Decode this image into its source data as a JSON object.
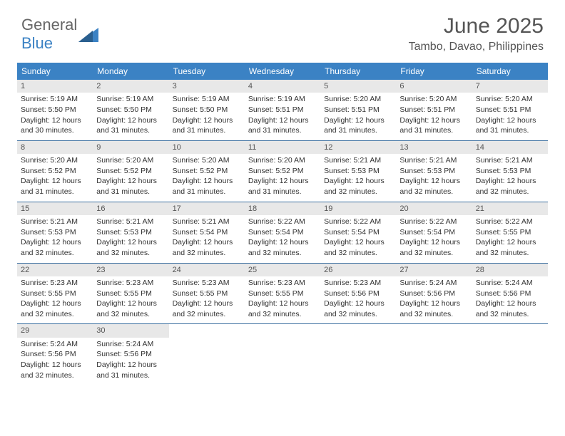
{
  "logo": {
    "word1": "General",
    "word2": "Blue"
  },
  "header": {
    "month": "June 2025",
    "location": "Tambo, Davao, Philippines"
  },
  "colors": {
    "header_bar": "#3b82c4",
    "daynum_bg": "#e8e8e8",
    "week_border": "#3b6fa0",
    "text": "#333333",
    "title": "#555555"
  },
  "daynames": [
    "Sunday",
    "Monday",
    "Tuesday",
    "Wednesday",
    "Thursday",
    "Friday",
    "Saturday"
  ],
  "days": [
    {
      "n": "1",
      "sr": "Sunrise: 5:19 AM",
      "ss": "Sunset: 5:50 PM",
      "d1": "Daylight: 12 hours",
      "d2": "and 30 minutes."
    },
    {
      "n": "2",
      "sr": "Sunrise: 5:19 AM",
      "ss": "Sunset: 5:50 PM",
      "d1": "Daylight: 12 hours",
      "d2": "and 31 minutes."
    },
    {
      "n": "3",
      "sr": "Sunrise: 5:19 AM",
      "ss": "Sunset: 5:50 PM",
      "d1": "Daylight: 12 hours",
      "d2": "and 31 minutes."
    },
    {
      "n": "4",
      "sr": "Sunrise: 5:19 AM",
      "ss": "Sunset: 5:51 PM",
      "d1": "Daylight: 12 hours",
      "d2": "and 31 minutes."
    },
    {
      "n": "5",
      "sr": "Sunrise: 5:20 AM",
      "ss": "Sunset: 5:51 PM",
      "d1": "Daylight: 12 hours",
      "d2": "and 31 minutes."
    },
    {
      "n": "6",
      "sr": "Sunrise: 5:20 AM",
      "ss": "Sunset: 5:51 PM",
      "d1": "Daylight: 12 hours",
      "d2": "and 31 minutes."
    },
    {
      "n": "7",
      "sr": "Sunrise: 5:20 AM",
      "ss": "Sunset: 5:51 PM",
      "d1": "Daylight: 12 hours",
      "d2": "and 31 minutes."
    },
    {
      "n": "8",
      "sr": "Sunrise: 5:20 AM",
      "ss": "Sunset: 5:52 PM",
      "d1": "Daylight: 12 hours",
      "d2": "and 31 minutes."
    },
    {
      "n": "9",
      "sr": "Sunrise: 5:20 AM",
      "ss": "Sunset: 5:52 PM",
      "d1": "Daylight: 12 hours",
      "d2": "and 31 minutes."
    },
    {
      "n": "10",
      "sr": "Sunrise: 5:20 AM",
      "ss": "Sunset: 5:52 PM",
      "d1": "Daylight: 12 hours",
      "d2": "and 31 minutes."
    },
    {
      "n": "11",
      "sr": "Sunrise: 5:20 AM",
      "ss": "Sunset: 5:52 PM",
      "d1": "Daylight: 12 hours",
      "d2": "and 31 minutes."
    },
    {
      "n": "12",
      "sr": "Sunrise: 5:21 AM",
      "ss": "Sunset: 5:53 PM",
      "d1": "Daylight: 12 hours",
      "d2": "and 32 minutes."
    },
    {
      "n": "13",
      "sr": "Sunrise: 5:21 AM",
      "ss": "Sunset: 5:53 PM",
      "d1": "Daylight: 12 hours",
      "d2": "and 32 minutes."
    },
    {
      "n": "14",
      "sr": "Sunrise: 5:21 AM",
      "ss": "Sunset: 5:53 PM",
      "d1": "Daylight: 12 hours",
      "d2": "and 32 minutes."
    },
    {
      "n": "15",
      "sr": "Sunrise: 5:21 AM",
      "ss": "Sunset: 5:53 PM",
      "d1": "Daylight: 12 hours",
      "d2": "and 32 minutes."
    },
    {
      "n": "16",
      "sr": "Sunrise: 5:21 AM",
      "ss": "Sunset: 5:53 PM",
      "d1": "Daylight: 12 hours",
      "d2": "and 32 minutes."
    },
    {
      "n": "17",
      "sr": "Sunrise: 5:21 AM",
      "ss": "Sunset: 5:54 PM",
      "d1": "Daylight: 12 hours",
      "d2": "and 32 minutes."
    },
    {
      "n": "18",
      "sr": "Sunrise: 5:22 AM",
      "ss": "Sunset: 5:54 PM",
      "d1": "Daylight: 12 hours",
      "d2": "and 32 minutes."
    },
    {
      "n": "19",
      "sr": "Sunrise: 5:22 AM",
      "ss": "Sunset: 5:54 PM",
      "d1": "Daylight: 12 hours",
      "d2": "and 32 minutes."
    },
    {
      "n": "20",
      "sr": "Sunrise: 5:22 AM",
      "ss": "Sunset: 5:54 PM",
      "d1": "Daylight: 12 hours",
      "d2": "and 32 minutes."
    },
    {
      "n": "21",
      "sr": "Sunrise: 5:22 AM",
      "ss": "Sunset: 5:55 PM",
      "d1": "Daylight: 12 hours",
      "d2": "and 32 minutes."
    },
    {
      "n": "22",
      "sr": "Sunrise: 5:23 AM",
      "ss": "Sunset: 5:55 PM",
      "d1": "Daylight: 12 hours",
      "d2": "and 32 minutes."
    },
    {
      "n": "23",
      "sr": "Sunrise: 5:23 AM",
      "ss": "Sunset: 5:55 PM",
      "d1": "Daylight: 12 hours",
      "d2": "and 32 minutes."
    },
    {
      "n": "24",
      "sr": "Sunrise: 5:23 AM",
      "ss": "Sunset: 5:55 PM",
      "d1": "Daylight: 12 hours",
      "d2": "and 32 minutes."
    },
    {
      "n": "25",
      "sr": "Sunrise: 5:23 AM",
      "ss": "Sunset: 5:55 PM",
      "d1": "Daylight: 12 hours",
      "d2": "and 32 minutes."
    },
    {
      "n": "26",
      "sr": "Sunrise: 5:23 AM",
      "ss": "Sunset: 5:56 PM",
      "d1": "Daylight: 12 hours",
      "d2": "and 32 minutes."
    },
    {
      "n": "27",
      "sr": "Sunrise: 5:24 AM",
      "ss": "Sunset: 5:56 PM",
      "d1": "Daylight: 12 hours",
      "d2": "and 32 minutes."
    },
    {
      "n": "28",
      "sr": "Sunrise: 5:24 AM",
      "ss": "Sunset: 5:56 PM",
      "d1": "Daylight: 12 hours",
      "d2": "and 32 minutes."
    },
    {
      "n": "29",
      "sr": "Sunrise: 5:24 AM",
      "ss": "Sunset: 5:56 PM",
      "d1": "Daylight: 12 hours",
      "d2": "and 32 minutes."
    },
    {
      "n": "30",
      "sr": "Sunrise: 5:24 AM",
      "ss": "Sunset: 5:56 PM",
      "d1": "Daylight: 12 hours",
      "d2": "and 31 minutes."
    }
  ]
}
